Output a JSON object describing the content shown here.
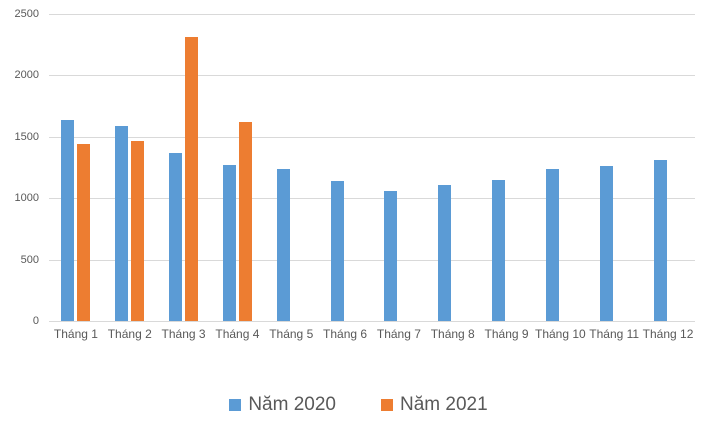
{
  "chart_data": {
    "type": "bar",
    "title": "",
    "categories": [
      "Tháng 1",
      "Tháng 2",
      "Tháng 3",
      "Tháng 4",
      "Tháng 5",
      "Tháng 6",
      "Tháng 7",
      "Tháng 8",
      "Tháng 9",
      "Tháng 10",
      "Tháng 11",
      "Tháng 12"
    ],
    "series": [
      {
        "name": "Năm 2020",
        "color": "#5B9BD5",
        "values": [
          1640,
          1590,
          1370,
          1270,
          1240,
          1140,
          1060,
          1105,
          1145,
          1240,
          1260,
          1310
        ]
      },
      {
        "name": "Năm 2021",
        "color": "#ED7D31",
        "values": [
          1440,
          1465,
          2310,
          1620,
          null,
          null,
          null,
          null,
          null,
          null,
          null,
          null
        ]
      }
    ],
    "xlabel": "",
    "ylabel": "",
    "ylim": [
      0,
      2500
    ],
    "yticks": [
      0,
      500,
      1000,
      1500,
      2000,
      2500
    ],
    "grid": "horizontal",
    "gridline_color": "#D9D9D9",
    "axis_text_color": "#595959",
    "background": "#FFFFFF",
    "legend_position": "bottom"
  }
}
